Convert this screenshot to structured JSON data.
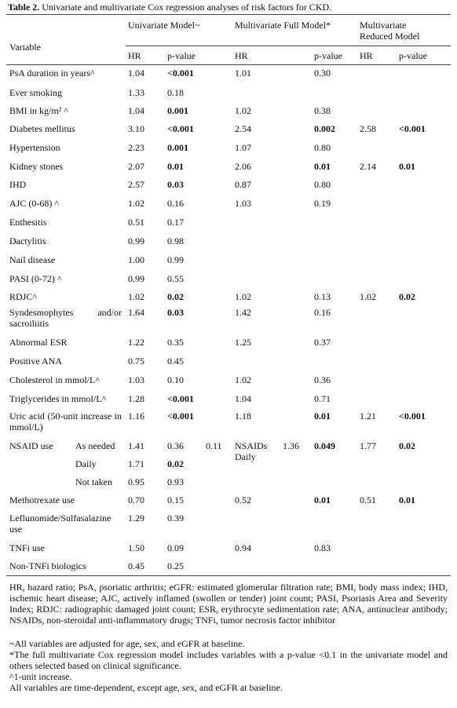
{
  "title": {
    "label": "Table 2.",
    "text": "Univariate and multivariate Cox regression analyses of risk factors for CKD."
  },
  "table": {
    "variable_header": "Variable",
    "groups": [
      "Univariate Model~",
      "Multivariate Full Model*",
      "Multivariate Reduced Model"
    ],
    "subheaders": [
      "HR",
      "p-value",
      "HR",
      "p-value",
      "HR",
      "p-value"
    ],
    "rows": [
      [
        "PsA duration in years^",
        "1.04",
        "<0.001",
        "1.01",
        "0.30"
      ],
      [
        "Ever smoking",
        "1.33",
        "0.18"
      ],
      [
        "BMI in kg/m² ^",
        "1.04",
        "0.001",
        "1.02",
        "0.38"
      ],
      [
        "Diabetes mellitus",
        "3.10",
        "<0.001",
        "2.54",
        "0.002",
        "2.58",
        "<0.001"
      ],
      [
        "Hypertension",
        "2.23",
        "0.001",
        "1.07",
        "0.80"
      ],
      [
        "Kidney stones",
        "2.07",
        "0.01",
        "2.06",
        "0.01",
        "2.14",
        "0.01"
      ],
      [
        "IHD",
        "2.57",
        "0.03",
        "0.87",
        "0.80"
      ],
      [
        "AJC (0-68) ^",
        "1.02",
        "0.16",
        "1.03",
        "0.19"
      ],
      [
        "Enthesitis",
        "0.51",
        "0.17"
      ],
      [
        "Dactylitis",
        "0.99",
        "0.98"
      ],
      [
        "Nail disease",
        "1.00",
        "0.99"
      ],
      [
        "PASI (0-72) ^",
        "0.99",
        "0.55"
      ],
      [
        "RDJC^",
        "1.02",
        "0.02",
        "1.02",
        "0.13",
        "1.02",
        "0.02"
      ],
      [
        "Syndesmophytes and/or sacroiliitis",
        "1.64",
        "0.03",
        "1.42",
        "0.16"
      ],
      [
        "Abnormal ESR",
        "1.22",
        "0.35",
        "1.25",
        "0.37"
      ],
      [
        "Positive ANA",
        "0.75",
        "0.45"
      ],
      [
        "Cholesterol in mmol/L^",
        "1.03",
        "0.10",
        "1.02",
        "0.36"
      ],
      [
        "Triglycerides in mmol/L^",
        "1.28",
        "<0.001",
        "1.04",
        "0.71"
      ],
      [
        "Uric acid (50-unit increase in mmol/L)",
        "1.16",
        "<0.001",
        "1.18",
        "0.01",
        "1.21",
        "<0.001"
      ],
      {
        "label": "NSAID use",
        "levels": [
          [
            "As needed",
            "1.41",
            "0.36"
          ],
          [
            "Daily",
            "1.71",
            "0.02"
          ],
          [
            "Not taken",
            "0.95",
            "0.93"
          ]
        ],
        "overall_p": "0.11",
        "full_label": "NSAIDs Daily",
        "full_hr": "1.36",
        "full_p": "0.049",
        "reduced_hr": "1.77",
        "reduced_p": "0.02"
      },
      [
        "Methotrexate use",
        "0.70",
        "0.15",
        "0.52",
        "0.01",
        "0.51",
        "0.01"
      ],
      [
        "Leflunomide/Sulfasalazine use",
        "1.29",
        "0.39"
      ],
      [
        "TNFi use",
        "1.50",
        "0.09",
        "0.94",
        "0.83"
      ],
      [
        "Non-TNFi biologics",
        "0.45",
        "0.25"
      ]
    ]
  },
  "footnotes": {
    "abbreviations": "HR, hazard ratio; PsA, psoriatic arthritis; eGFR: estimated glomerular filtration rate; BMI, body mass index; IHD, ischemic heart disease; AJC, actively inflamed (swollen or tender) joint count; PASI, Psoriasis Area and Severity Index; RDJC: radiographic damaged joint count; ESR, erythrocyte sedimentation rate; ANA, antinuclear antibody; NSAIDs, non-steroidal anti-inflammatory drugs; TNFi, tumor necrosis factor inhibitor",
    "notes": [
      "~All variables are adjusted for age, sex, and eGFR at baseline.",
      "*The full multivariate Cox regression model includes variables with a p-value <0.1 in the univariate model and others selected based on clinical significance.",
      "^1-unit increase.",
      "All variables are time-dependent, except age, sex, and eGFR at baseline."
    ]
  }
}
